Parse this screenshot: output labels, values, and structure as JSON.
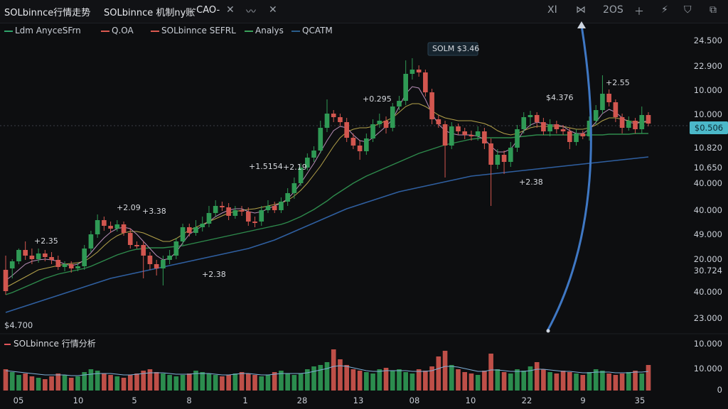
{
  "tabs": [
    {
      "label": "SOLbinnce行情走势"
    },
    {
      "label": "SOLbinnce 机制ny账"
    },
    {
      "label": "·CAO-"
    }
  ],
  "toolbar": {
    "minimize_glyph": "〰",
    "close_glyph": "✕",
    "items": [
      "ⵝI",
      "⋈",
      "2OS",
      "＋",
      "⚡",
      "⛉",
      "⧉"
    ]
  },
  "legend": [
    {
      "name": "Ldm AnyceSFrn",
      "color": "#2fa36b"
    },
    {
      "name": "Q.OA",
      "color": "#d9584f"
    },
    {
      "name": "SOLbinnce SEFRL",
      "color": "#d9584f"
    },
    {
      "name": "Analys",
      "color": "#3aa05a"
    },
    {
      "name": "QCATM",
      "color": "#2a5c8a"
    }
  ],
  "volume_label": "SOLbinnce 行情分析",
  "colors": {
    "up": "#2f9a55",
    "down": "#d2564f",
    "ma_fast": "#b88fb8",
    "ma_mid": "#b4a24a",
    "ma_slow": "#2e8a4c",
    "ma_long": "#2f5fa0",
    "arrow": "#3f78c4"
  },
  "chart_data": {
    "type": "candlestick",
    "y_axis_labels": [
      "24.500",
      "22.900",
      "10.000",
      "10.000",
      "10.820",
      "10.650",
      "40.000",
      "40.000",
      "49.000",
      "20.000",
      "30.724",
      "40.000",
      "23.000"
    ],
    "price_tag": "$0.506",
    "left_tag": "$4.700",
    "volume_axis_labels": [
      "10.000",
      "10.000",
      "0"
    ],
    "x_axis_labels": [
      "05",
      "10",
      "5",
      "8",
      "1",
      "28",
      "13",
      "08",
      "10",
      "22",
      "9",
      "35"
    ],
    "annotations": [
      "+2.35",
      "+2.09",
      "+3.38",
      "+2.38",
      "+1.5154",
      "+2.19",
      "+0.295",
      "SOLM $3.46",
      "$4.376",
      "+2.55",
      "+2.38"
    ],
    "candles": [
      [
        380,
        410,
        360,
        415
      ],
      [
        378,
        368,
        365,
        392
      ],
      [
        368,
        352,
        350,
        372
      ],
      [
        352,
        360,
        340,
        366
      ],
      [
        360,
        365,
        350,
        372
      ],
      [
        365,
        357,
        350,
        370
      ],
      [
        357,
        362,
        352,
        368
      ],
      [
        362,
        366,
        355,
        372
      ],
      [
        366,
        376,
        360,
        380
      ],
      [
        376,
        372,
        368,
        382
      ],
      [
        372,
        378,
        368,
        384
      ],
      [
        378,
        375,
        370,
        382
      ],
      [
        375,
        350,
        345,
        380
      ],
      [
        350,
        330,
        325,
        355
      ],
      [
        330,
        310,
        302,
        335
      ],
      [
        310,
        318,
        305,
        325
      ],
      [
        318,
        322,
        312,
        328
      ],
      [
        322,
        316,
        310,
        326
      ],
      [
        316,
        328,
        312,
        332
      ],
      [
        328,
        345,
        322,
        350
      ],
      [
        345,
        345,
        340,
        350
      ],
      [
        345,
        360,
        340,
        392
      ],
      [
        360,
        372,
        355,
        380
      ],
      [
        372,
        378,
        366,
        388
      ],
      [
        378,
        366,
        360,
        402
      ],
      [
        366,
        360,
        352,
        372
      ],
      [
        360,
        340,
        335,
        365
      ],
      [
        340,
        320,
        315,
        345
      ],
      [
        320,
        328,
        315,
        333
      ],
      [
        328,
        320,
        310,
        332
      ],
      [
        320,
        315,
        305,
        326
      ],
      [
        315,
        300,
        290,
        320
      ],
      [
        300,
        290,
        282,
        305
      ],
      [
        290,
        292,
        284,
        297
      ],
      [
        292,
        304,
        286,
        310
      ],
      [
        304,
        296,
        290,
        308
      ],
      [
        296,
        298,
        290,
        304
      ],
      [
        298,
        312,
        292,
        318
      ],
      [
        312,
        312,
        305,
        320
      ],
      [
        312,
        296,
        290,
        318
      ],
      [
        296,
        290,
        282,
        300
      ],
      [
        290,
        296,
        284,
        300
      ],
      [
        296,
        284,
        278,
        300
      ],
      [
        284,
        272,
        265,
        290
      ],
      [
        272,
        258,
        250,
        280
      ],
      [
        258,
        236,
        230,
        262
      ],
      [
        236,
        222,
        216,
        240
      ],
      [
        222,
        212,
        206,
        228
      ],
      [
        212,
        180,
        170,
        216
      ],
      [
        180,
        160,
        140,
        186
      ],
      [
        160,
        165,
        155,
        172
      ],
      [
        165,
        172,
        160,
        178
      ],
      [
        172,
        194,
        166,
        200
      ],
      [
        194,
        205,
        188,
        210
      ],
      [
        205,
        213,
        198,
        225
      ],
      [
        213,
        195,
        188,
        218
      ],
      [
        195,
        175,
        168,
        200
      ],
      [
        175,
        170,
        160,
        180
      ],
      [
        170,
        180,
        164,
        188
      ],
      [
        180,
        150,
        145,
        185
      ],
      [
        150,
        142,
        135,
        155
      ],
      [
        142,
        104,
        85,
        148
      ],
      [
        104,
        98,
        82,
        112
      ],
      [
        98,
        102,
        92,
        108
      ],
      [
        102,
        130,
        98,
        136
      ],
      [
        130,
        168,
        125,
        175
      ],
      [
        168,
        175,
        162,
        180
      ],
      [
        175,
        205,
        170,
        250
      ],
      [
        205,
        178,
        172,
        210
      ],
      [
        178,
        185,
        174,
        190
      ],
      [
        185,
        190,
        180,
        196
      ],
      [
        190,
        192,
        184,
        198
      ],
      [
        192,
        185,
        178,
        198
      ],
      [
        185,
        202,
        180,
        210
      ],
      [
        202,
        232,
        195,
        290
      ],
      [
        232,
        218,
        210,
        238
      ],
      [
        218,
        228,
        212,
        245
      ],
      [
        228,
        208,
        200,
        235
      ],
      [
        208,
        182,
        176,
        214
      ],
      [
        182,
        165,
        158,
        188
      ],
      [
        165,
        162,
        156,
        178
      ],
      [
        162,
        172,
        158,
        180
      ],
      [
        172,
        185,
        166,
        190
      ],
      [
        185,
        175,
        168,
        192
      ],
      [
        175,
        182,
        170,
        188
      ],
      [
        182,
        185,
        176,
        190
      ],
      [
        185,
        200,
        180,
        210
      ],
      [
        200,
        188,
        182,
        205
      ],
      [
        188,
        192,
        184,
        196
      ],
      [
        192,
        170,
        164,
        198
      ],
      [
        170,
        155,
        148,
        176
      ],
      [
        155,
        132,
        106,
        160
      ],
      [
        132,
        144,
        126,
        150
      ],
      [
        144,
        165,
        140,
        172
      ],
      [
        165,
        180,
        160,
        188
      ],
      [
        180,
        170,
        164,
        184
      ],
      [
        170,
        182,
        166,
        188
      ],
      [
        182,
        162,
        150,
        188
      ],
      [
        162,
        174,
        158,
        178
      ]
    ],
    "ma_fast": [
      395,
      388,
      380,
      372,
      368,
      366,
      365,
      366,
      368,
      372,
      374,
      372,
      366,
      356,
      345,
      335,
      327,
      322,
      320,
      322,
      330,
      340,
      350,
      360,
      366,
      364,
      355,
      342,
      330,
      324,
      318,
      312,
      305,
      300,
      296,
      294,
      294,
      298,
      300,
      298,
      294,
      290,
      286,
      280,
      270,
      258,
      244,
      230,
      214,
      198,
      184,
      178,
      180,
      190,
      198,
      200,
      194,
      186,
      178,
      168,
      150,
      132,
      122,
      124,
      140,
      160,
      175,
      184,
      188,
      190,
      190,
      190,
      192,
      196,
      206,
      214,
      214,
      210,
      198,
      184,
      176,
      172,
      174,
      176,
      176,
      178,
      184,
      188,
      188,
      182,
      172,
      160,
      154,
      158,
      166,
      172,
      174,
      172,
      170
    ],
    "ma_mid": [
      405,
      400,
      395,
      390,
      385,
      380,
      378,
      376,
      374,
      372,
      371,
      370,
      368,
      362,
      355,
      346,
      338,
      332,
      328,
      326,
      326,
      328,
      332,
      336,
      340,
      340,
      336,
      330,
      324,
      320,
      316,
      312,
      308,
      304,
      300,
      298,
      296,
      295,
      294,
      292,
      290,
      288,
      286,
      282,
      276,
      268,
      258,
      246,
      234,
      220,
      206,
      194,
      186,
      182,
      180,
      180,
      178,
      174,
      170,
      166,
      158,
      150,
      146,
      146,
      150,
      156,
      162,
      166,
      168,
      170,
      170,
      170,
      172,
      174,
      178,
      184,
      188,
      190,
      188,
      184,
      180,
      178,
      178,
      178,
      178,
      178,
      180,
      182,
      182,
      180,
      176,
      170,
      166,
      166,
      168,
      170,
      172,
      172,
      172
    ],
    "ma_slow": [
      415,
      412,
      408,
      404,
      400,
      396,
      392,
      389,
      386,
      384,
      382,
      380,
      378,
      375,
      371,
      367,
      363,
      359,
      356,
      353,
      351,
      350,
      349,
      349,
      349,
      348,
      347,
      346,
      344,
      342,
      340,
      338,
      336,
      334,
      332,
      330,
      328,
      326,
      324,
      322,
      320,
      318,
      316,
      313,
      309,
      305,
      300,
      295,
      289,
      283,
      276,
      270,
      264,
      258,
      253,
      248,
      244,
      240,
      236,
      232,
      228,
      224,
      220,
      216,
      213,
      210,
      207,
      204,
      202,
      200,
      198,
      196,
      195,
      194,
      194,
      194,
      194,
      194,
      193,
      192,
      191,
      190,
      190,
      190,
      190,
      190,
      190,
      190,
      190,
      190,
      190,
      190,
      189,
      189,
      189,
      189,
      188,
      188,
      188
    ],
    "ma_long": [
      440,
      437,
      434,
      431,
      428,
      425,
      422,
      419,
      416,
      413,
      410,
      407,
      404,
      401,
      398,
      395,
      392,
      390,
      388,
      386,
      384,
      382,
      380,
      378,
      376,
      374,
      372,
      370,
      368,
      366,
      364,
      362,
      360,
      358,
      356,
      354,
      352,
      350,
      347,
      344,
      341,
      338,
      334,
      330,
      326,
      322,
      318,
      314,
      310,
      306,
      302,
      298,
      294,
      291,
      288,
      285,
      282,
      279,
      276,
      273,
      270,
      268,
      266,
      264,
      262,
      260,
      258,
      256,
      254,
      252,
      250,
      248,
      247,
      246,
      245,
      244,
      243,
      242,
      241,
      240,
      239,
      238,
      237,
      236,
      235,
      234,
      233,
      232,
      231,
      230,
      229,
      228,
      227,
      226,
      225,
      224,
      223,
      222,
      221
    ],
    "volumes": [
      30,
      26,
      22,
      24,
      20,
      18,
      16,
      20,
      24,
      22,
      18,
      20,
      26,
      30,
      28,
      24,
      22,
      20,
      18,
      22,
      24,
      28,
      30,
      26,
      24,
      22,
      20,
      22,
      24,
      28,
      26,
      24,
      22,
      20,
      22,
      24,
      26,
      24,
      22,
      20,
      22,
      26,
      28,
      24,
      22,
      24,
      30,
      34,
      36,
      40,
      58,
      44,
      36,
      30,
      28,
      26,
      24,
      30,
      32,
      28,
      30,
      26,
      24,
      30,
      28,
      34,
      48,
      56,
      36,
      30,
      26,
      24,
      22,
      28,
      52,
      30,
      26,
      24,
      30,
      28,
      34,
      40,
      30,
      26,
      24,
      28,
      26,
      24,
      22,
      26,
      30,
      28,
      24,
      22,
      24,
      26,
      28,
      24,
      36
    ],
    "volume_line": [
      28,
      27,
      26,
      25,
      24,
      23,
      22,
      22,
      22,
      22,
      21,
      21,
      22,
      23,
      24,
      24,
      24,
      23,
      22,
      22,
      23,
      24,
      25,
      25,
      25,
      24,
      23,
      23,
      23,
      24,
      24,
      24,
      23,
      22,
      22,
      23,
      24,
      24,
      23,
      22,
      22,
      23,
      24,
      24,
      24,
      24,
      25,
      27,
      29,
      31,
      34,
      35,
      34,
      32,
      30,
      28,
      27,
      27,
      28,
      28,
      28,
      28,
      27,
      27,
      27,
      28,
      31,
      34,
      34,
      33,
      31,
      29,
      27,
      27,
      29,
      29,
      28,
      27,
      27,
      27,
      28,
      30,
      30,
      29,
      28,
      27,
      27,
      26,
      25,
      25,
      26,
      26,
      26,
      25,
      25,
      25,
      26,
      26,
      27
    ]
  }
}
